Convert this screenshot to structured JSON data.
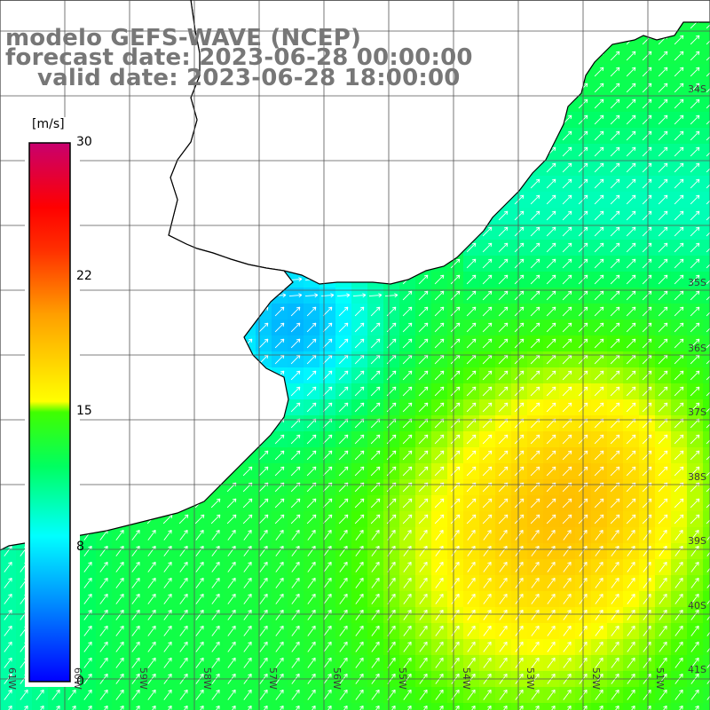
{
  "title": {
    "model": "modelo GEFS-WAVE (NCEP)",
    "forecast": "forecast date: 2023-06-28 00:00:00",
    "valid": "valid date: 2023-06-28 18:00:00"
  },
  "colorbar": {
    "unit": "[m/s]",
    "ticks": [
      "30",
      "22",
      "15",
      "8",
      "0"
    ],
    "colors": [
      "#0000ff",
      "#0090ff",
      "#00ffff",
      "#00ff60",
      "#80ff00",
      "#ffff00",
      "#ffa000",
      "#ff3000",
      "#ff0000",
      "#c8006e"
    ]
  },
  "map": {
    "lat_labels": [
      "34S",
      "35S",
      "36S",
      "37S",
      "38S",
      "39S",
      "40S",
      "41S"
    ],
    "lon_labels": [
      "61W",
      "60W",
      "59W",
      "58W",
      "57W",
      "56W",
      "55W",
      "54W",
      "53W",
      "52W",
      "51W"
    ],
    "field": "wind speed with direction arrows",
    "palette": {
      "land": "#ffffff",
      "coastline": "#000000",
      "gridline": "#555555",
      "arrow": "#ffffff"
    }
  }
}
